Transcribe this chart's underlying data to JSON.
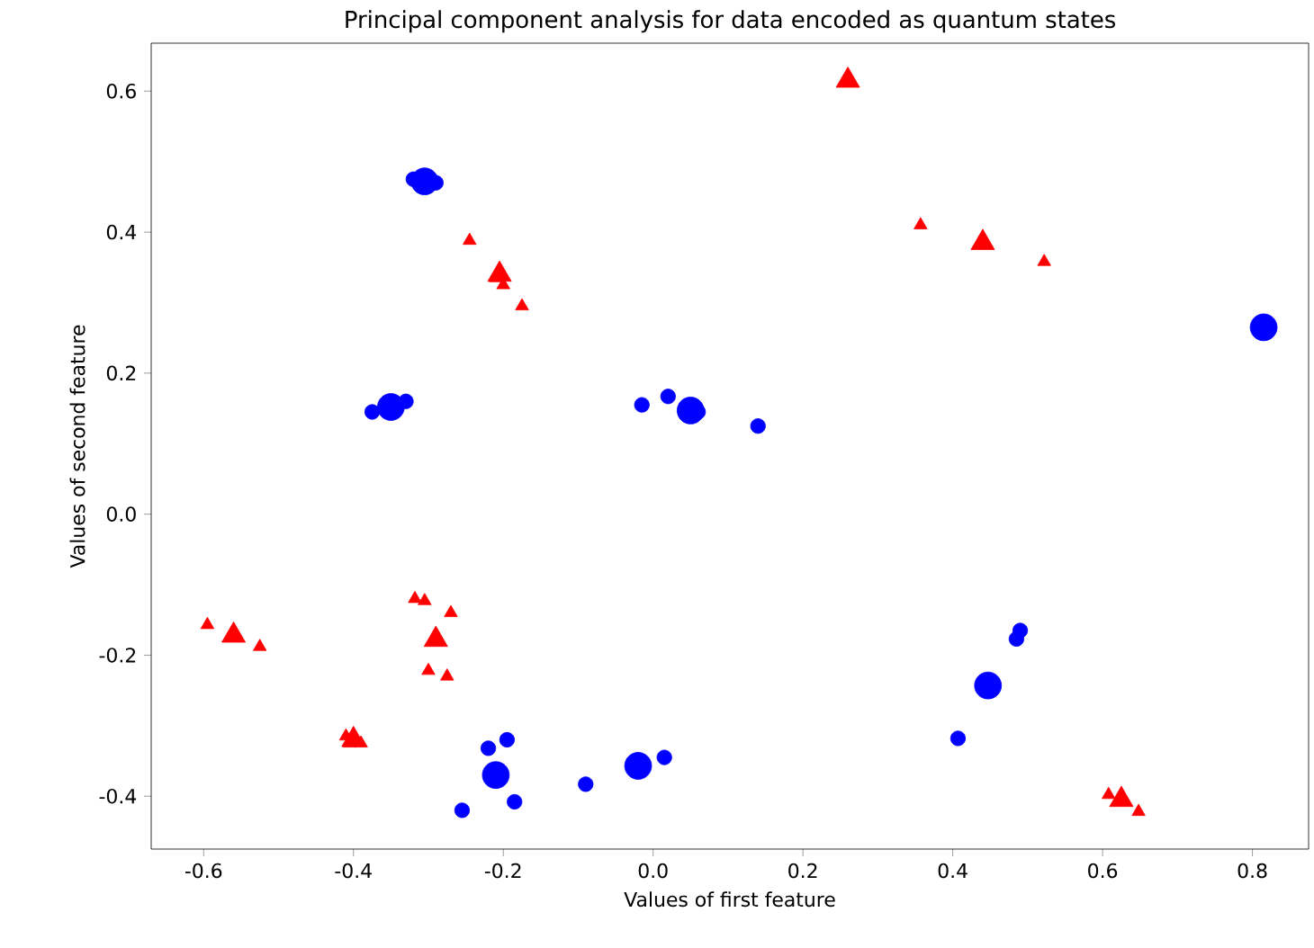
{
  "chart_data": {
    "type": "bubble",
    "title": "Principal component analysis for data encoded as quantum states",
    "xlabel": "Values of first feature",
    "ylabel": "Values of second feature",
    "xlim": [
      -0.67,
      0.875
    ],
    "ylim": [
      -0.475,
      0.668
    ],
    "xticks": [
      -0.6,
      -0.4,
      -0.2,
      {
        "value": 0,
        "label": "0.0"
      },
      0.2,
      0.4,
      0.6,
      0.8
    ],
    "yticks": [
      -0.4,
      -0.2,
      {
        "value": 0,
        "label": "0.0"
      },
      0.2,
      0.4,
      0.6
    ],
    "grid": false,
    "series": [
      {
        "color": "#0000ff",
        "marker": "circle",
        "x": [
          -0.32,
          -0.305,
          -0.29,
          -0.375,
          -0.35,
          -0.33,
          -0.015,
          0.02,
          0.05,
          0.06,
          0.14,
          0.815,
          0.49,
          0.485,
          0.447,
          0.407,
          -0.22,
          -0.195,
          -0.21,
          -0.255,
          -0.185,
          -0.09,
          -0.02,
          0.015
        ],
        "values": [
          0.475,
          0.472,
          0.47,
          0.145,
          0.152,
          0.16,
          0.155,
          0.167,
          0.147,
          0.145,
          0.125,
          0.265,
          -0.165,
          -0.177,
          -0.243,
          -0.318,
          -0.332,
          -0.32,
          -0.37,
          -0.42,
          -0.408,
          -0.383,
          -0.357,
          -0.345
        ],
        "sizes": [
          0.3,
          1,
          0.3,
          0.3,
          1,
          0.3,
          0.3,
          0.3,
          1,
          0.3,
          0.3,
          1,
          0.3,
          0.3,
          1,
          0.3,
          0.3,
          0.3,
          1,
          0.3,
          0.3,
          0.3,
          1,
          0.3
        ]
      },
      {
        "color": "#ff0000",
        "marker": "triangle",
        "x": [
          0.26,
          0.357,
          0.44,
          0.522,
          -0.245,
          -0.21,
          -0.205,
          -0.2,
          -0.175,
          -0.595,
          -0.56,
          -0.525,
          -0.318,
          -0.305,
          -0.27,
          -0.29,
          -0.3,
          -0.275,
          -0.41,
          -0.4,
          -0.39,
          -0.405,
          0.608,
          0.625,
          0.648
        ],
        "values": [
          0.615,
          0.41,
          0.385,
          0.358,
          0.388,
          0.335,
          0.34,
          0.325,
          0.295,
          -0.157,
          -0.172,
          -0.188,
          -0.12,
          -0.123,
          -0.14,
          -0.178,
          -0.222,
          -0.23,
          -0.315,
          -0.32,
          -0.325,
          -0.325,
          -0.398,
          -0.405,
          -0.422
        ],
        "sizes": [
          0.42,
          0.13,
          0.42,
          0.13,
          0.13,
          0.13,
          0.42,
          0.13,
          0.13,
          0.13,
          0.42,
          0.13,
          0.13,
          0.13,
          0.13,
          0.42,
          0.13,
          0.13,
          0.13,
          0.42,
          0.13,
          0.13,
          0.13,
          0.42,
          0.13
        ]
      }
    ]
  }
}
